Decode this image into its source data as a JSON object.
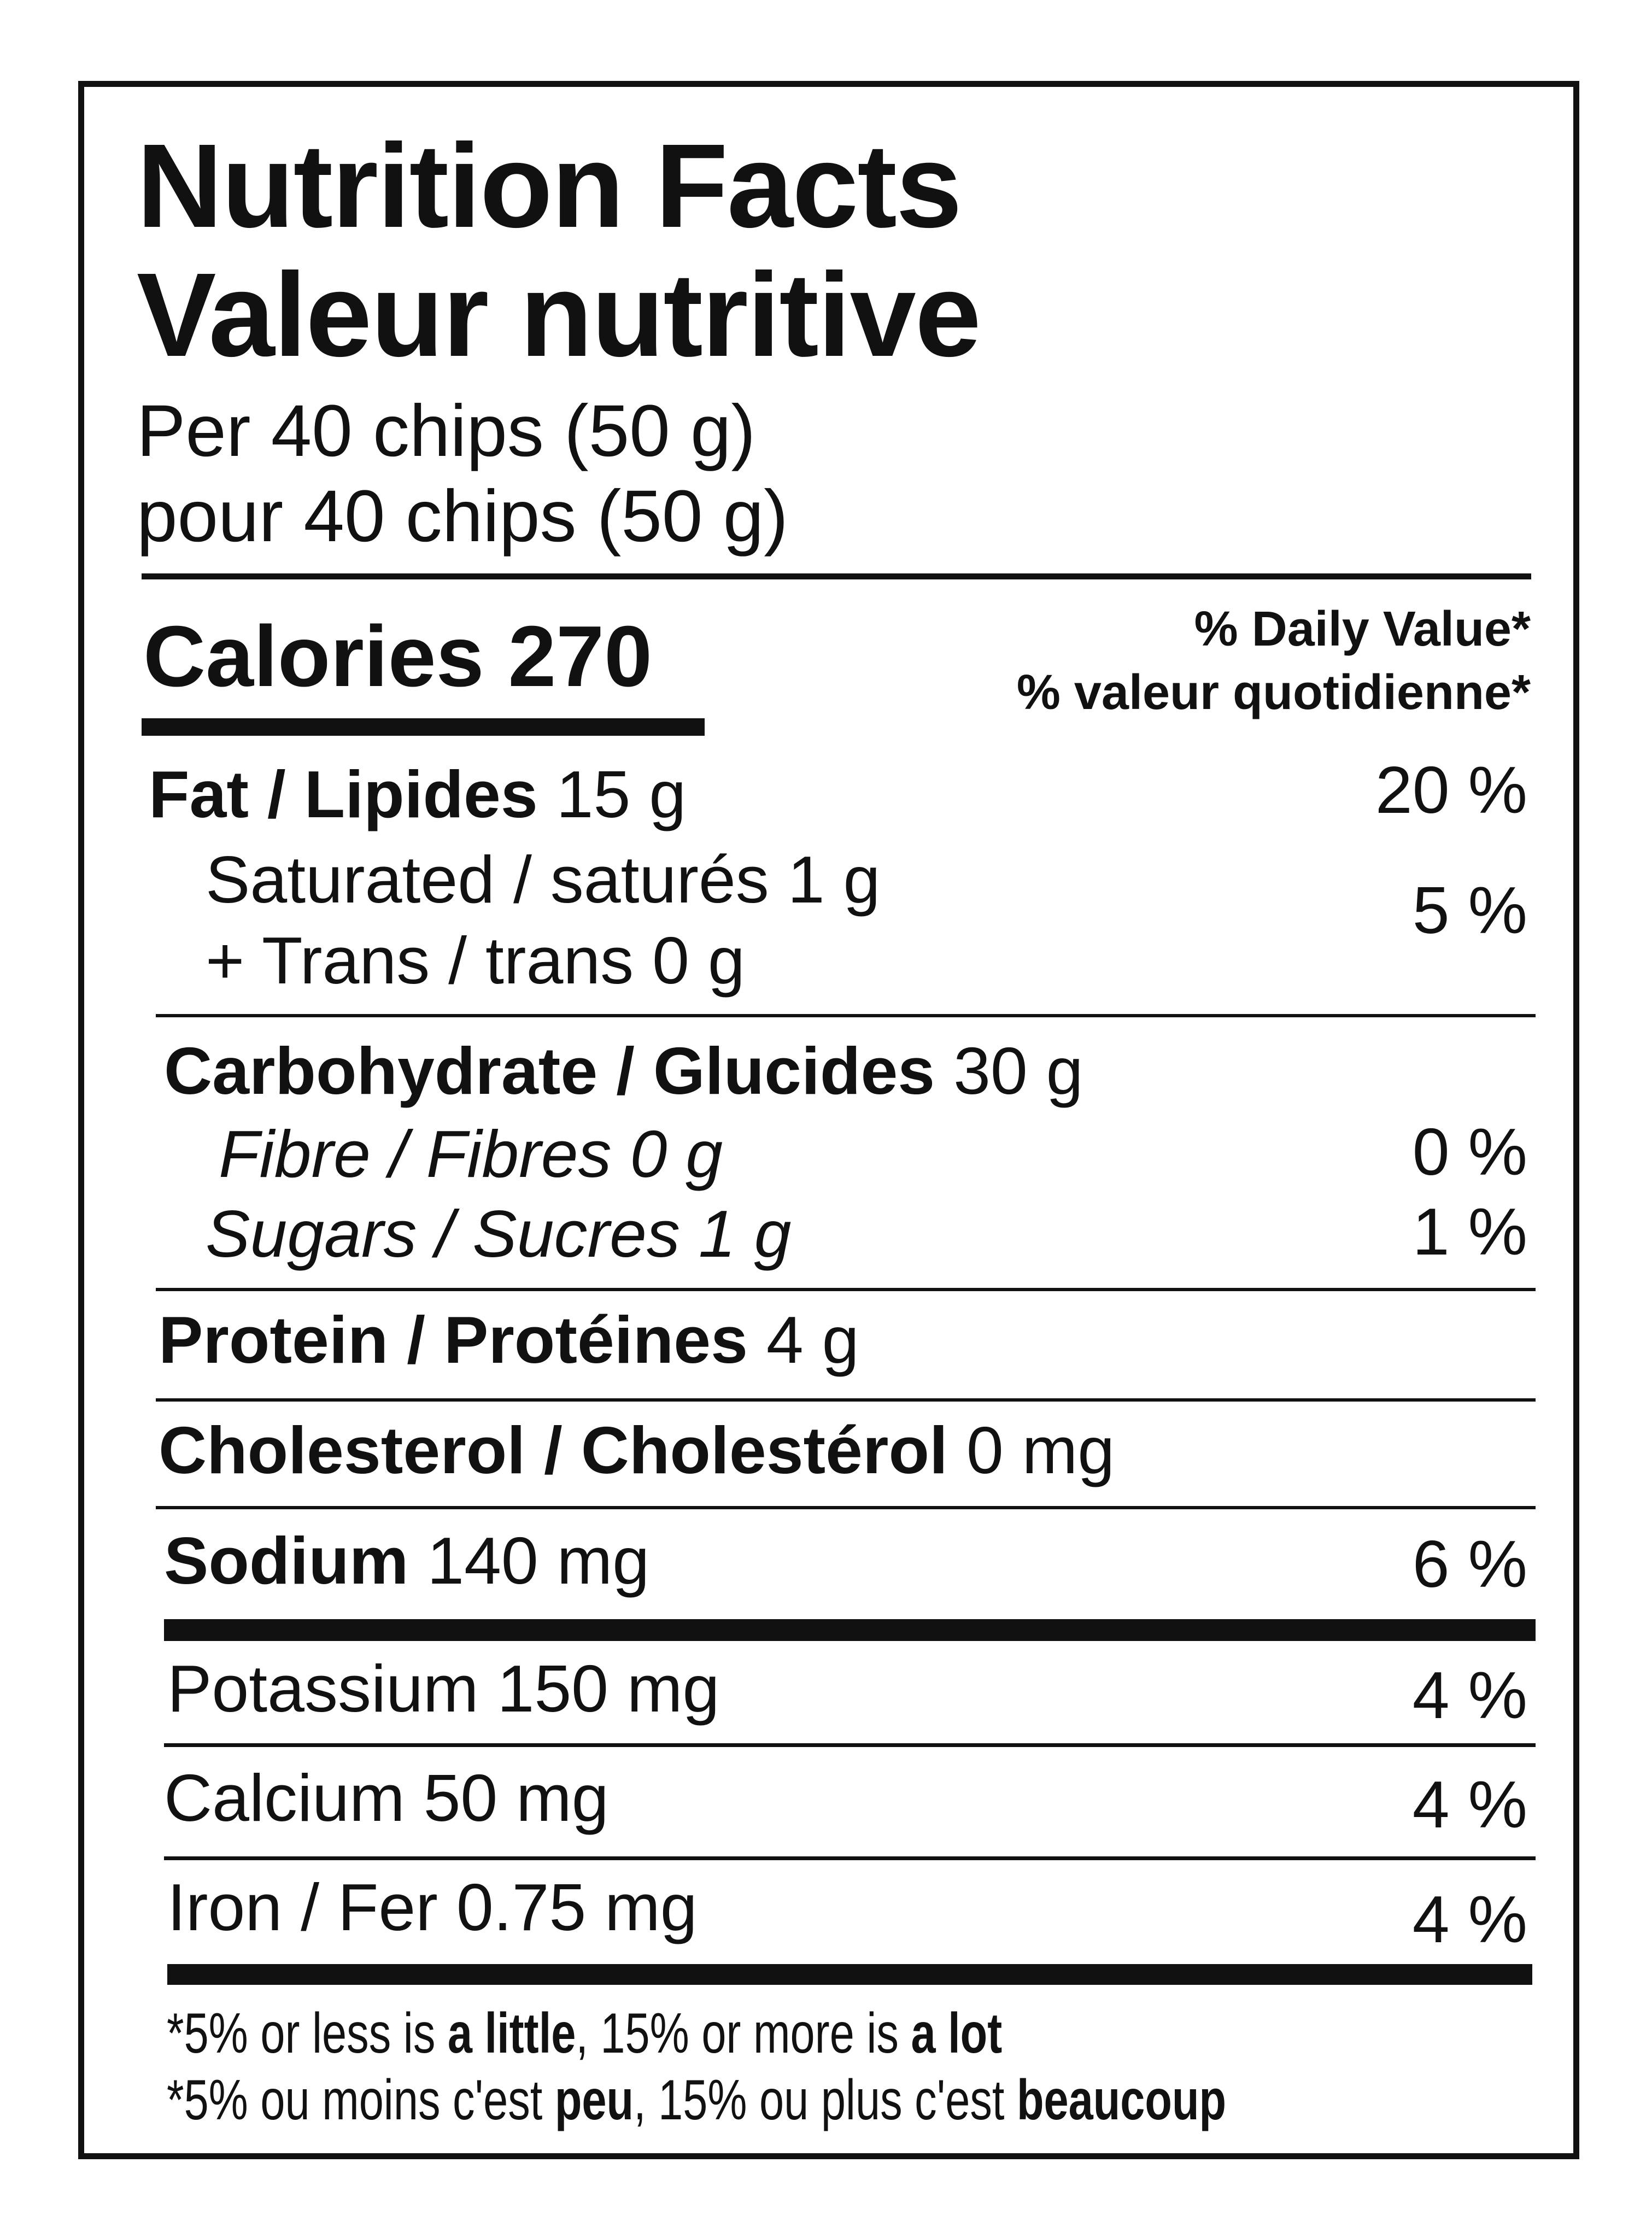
{
  "title_en": "Nutrition Facts",
  "title_fr": "Valeur nutritive",
  "serving_en": "Per 40 chips (50 g)",
  "serving_fr": "pour 40 chips (50 g)",
  "calories_label": "Calories",
  "calories_value": "270",
  "dv_header_en": "% Daily Value*",
  "dv_header_fr": "% valeur quotidienne*",
  "nutrients": [
    {
      "name": "Fat / Lipides",
      "amount": "15 g",
      "dv": "20 %"
    },
    {
      "name": "Saturated / saturés",
      "amount": "1 g",
      "dv": "5 %"
    },
    {
      "name": "+ Trans / trans",
      "amount": "0 g"
    },
    {
      "name": "Carbohydrate / Glucides",
      "amount": "30 g"
    },
    {
      "name": "Fibre / Fibres",
      "amount": "0 g",
      "dv": "0 %"
    },
    {
      "name": "Sugars / Sucres",
      "amount": "1 g",
      "dv": "1 %"
    },
    {
      "name": "Protein / Protéines",
      "amount": "4 g"
    },
    {
      "name": "Cholesterol / Cholestérol",
      "amount": "0 mg"
    },
    {
      "name": "Sodium",
      "amount": "140 mg",
      "dv": "6 %"
    },
    {
      "name": "Potassium",
      "amount": "150 mg",
      "dv": "4 %"
    },
    {
      "name": "Calcium",
      "amount": "50 mg",
      "dv": "4 %"
    },
    {
      "name": "Iron / Fer",
      "amount": "0.75 mg",
      "dv": "4 %"
    }
  ],
  "footnote": {
    "en": {
      "a": "*5% or less is ",
      "b": "a little",
      "c": ", 15% or more is ",
      "d": "a lot"
    },
    "fr": {
      "a": "*5% ou moins c'est ",
      "b": "peu",
      "c": ", 15% ou plus c'est ",
      "d": "beaucoup"
    }
  }
}
